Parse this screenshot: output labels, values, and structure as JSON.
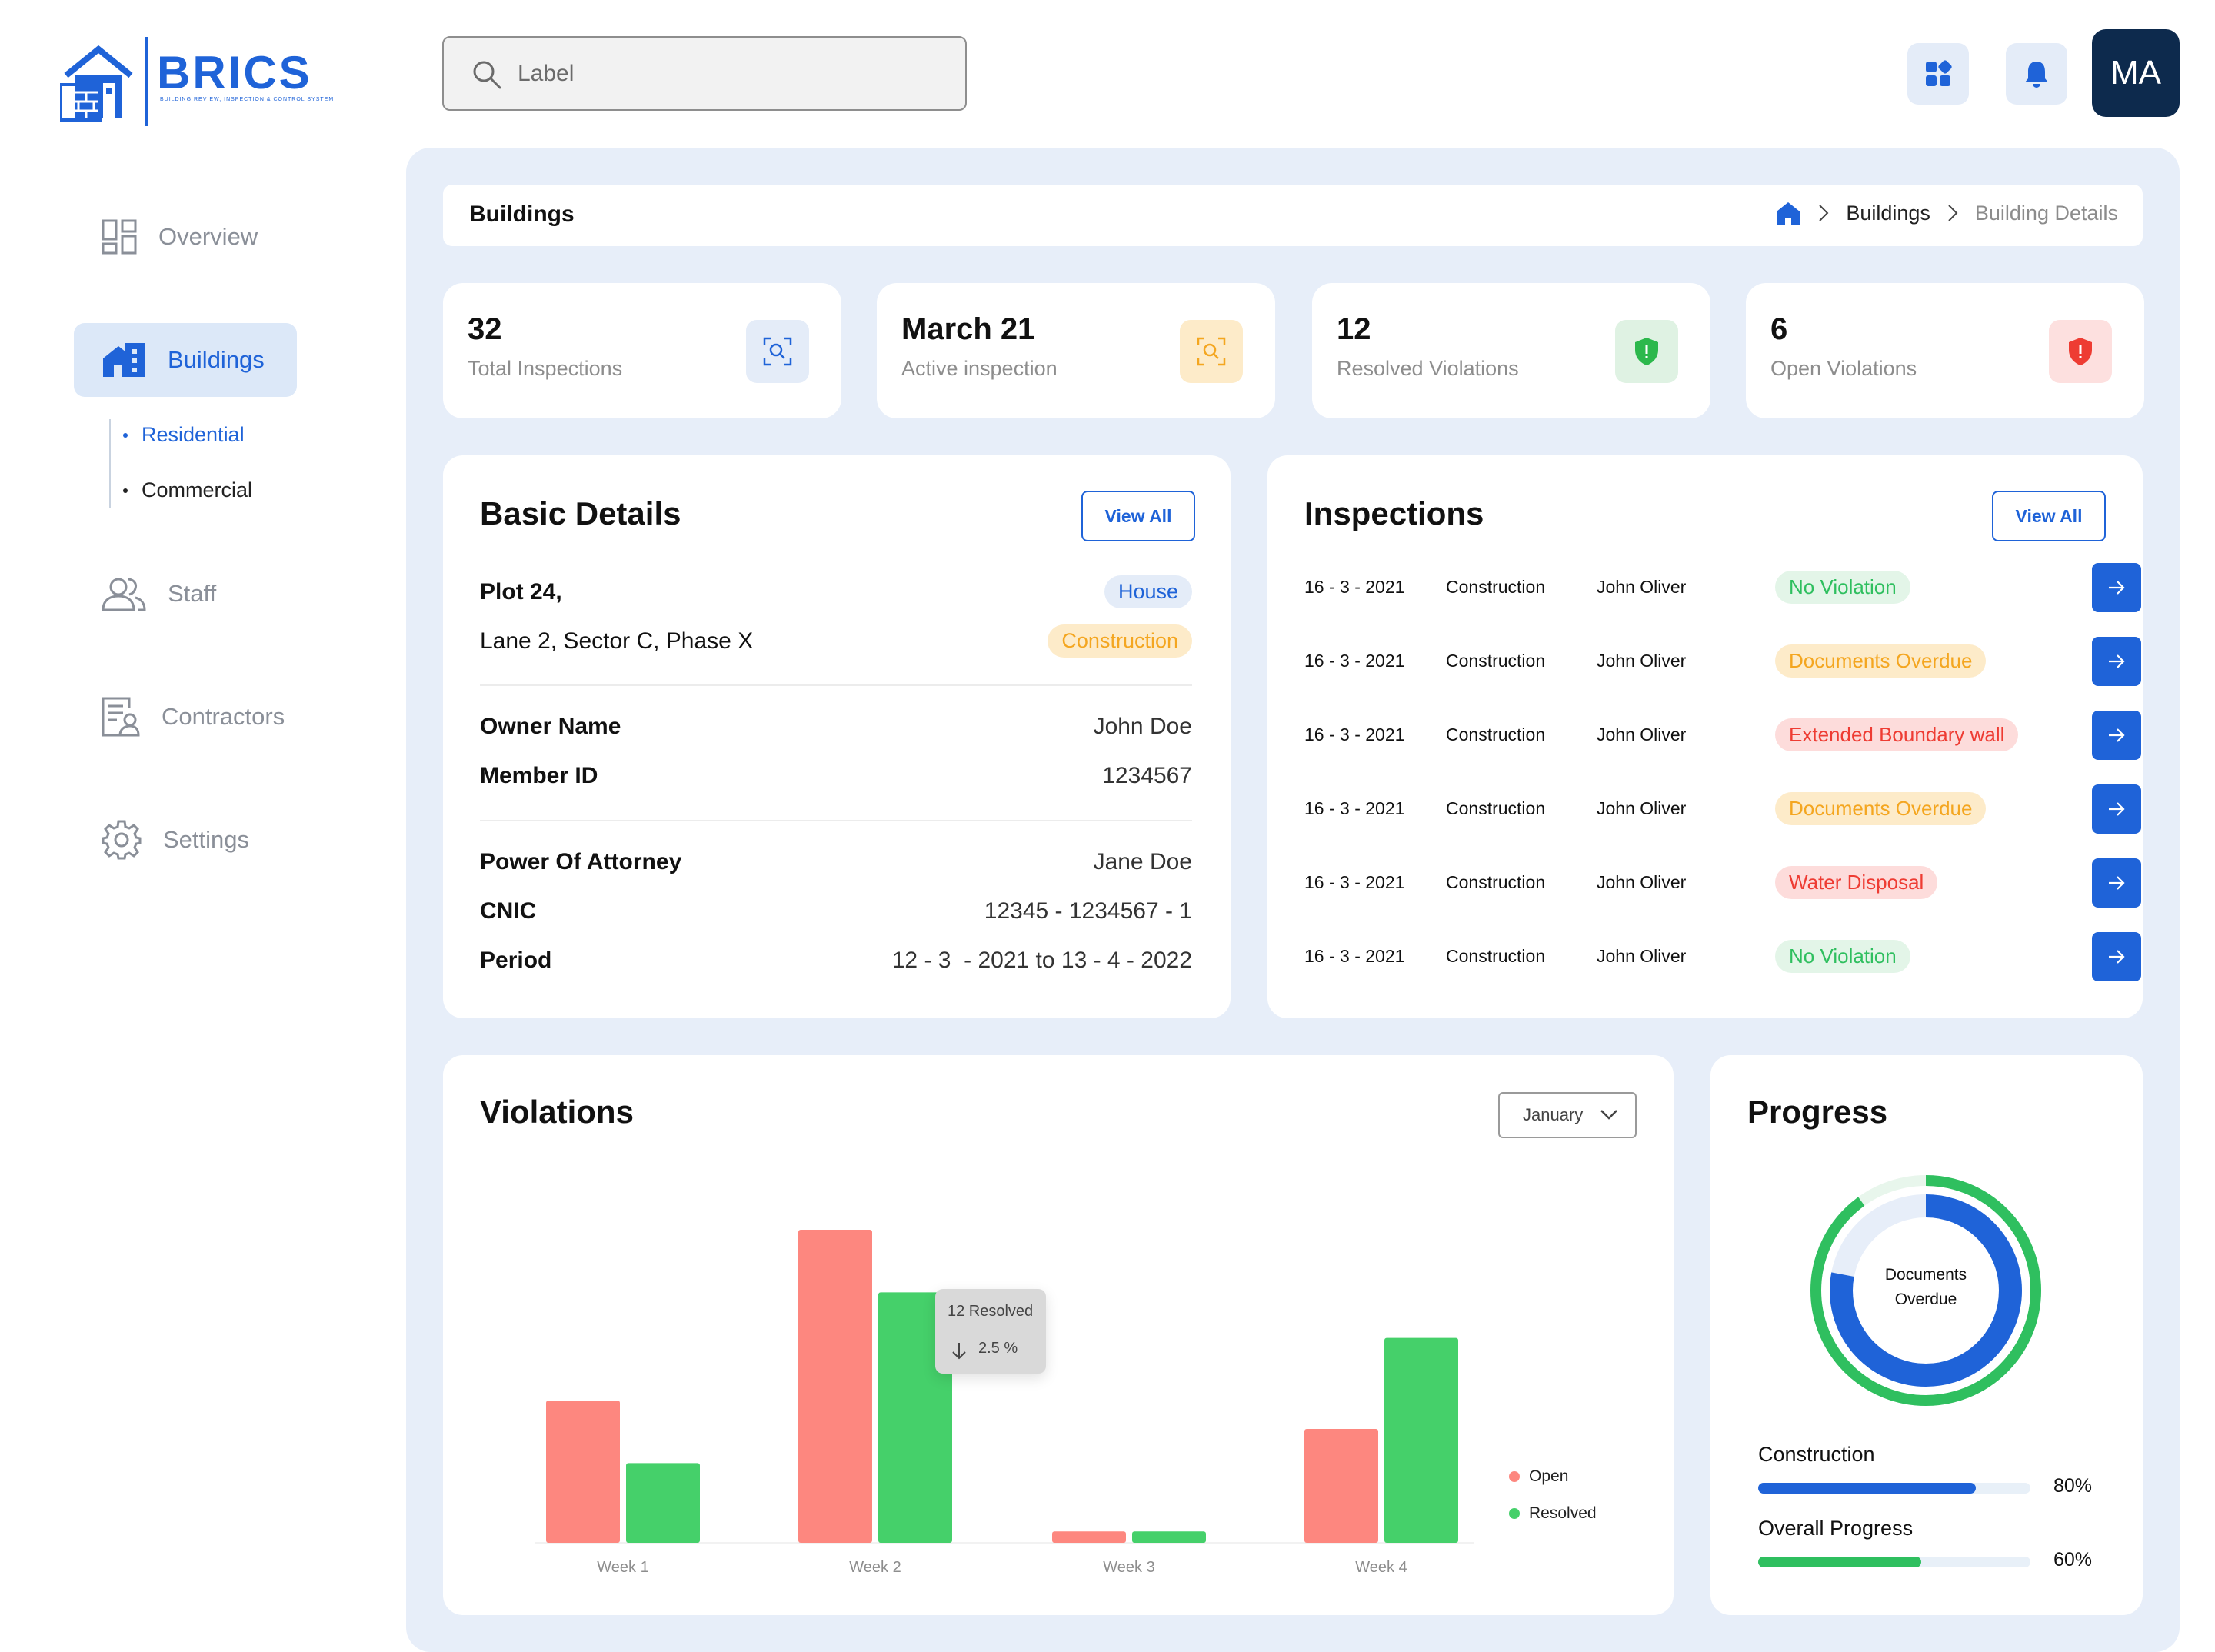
{
  "logo": {
    "name": "BRICS",
    "tagline": "BUILDING REVIEW, INSPECTION & CONTROL SYSTEM"
  },
  "search": {
    "placeholder": "Label"
  },
  "user": {
    "initials": "MA"
  },
  "colors": {
    "accent": "#1f63d8",
    "open": "#fd877f",
    "resolved": "#45d06a",
    "avatar": "#0d2a4d"
  },
  "sidebar": {
    "items": [
      {
        "label": "Overview",
        "icon": "grid-icon"
      },
      {
        "label": "Buildings",
        "icon": "buildings-icon",
        "active": true
      },
      {
        "label": "Staff",
        "icon": "users-icon"
      },
      {
        "label": "Contractors",
        "icon": "contract-icon"
      },
      {
        "label": "Settings",
        "icon": "gear-icon"
      }
    ],
    "sub_items": [
      {
        "label": "Residential",
        "active": true
      },
      {
        "label": "Commercial"
      }
    ]
  },
  "header": {
    "title": "Buildings",
    "breadcrumbs": [
      "Buildings",
      "Building Details"
    ]
  },
  "stats": [
    {
      "value": "32",
      "label": "Total Inspections",
      "icon": "scan-search-icon",
      "tint": "#e4ecf8",
      "color": "#1f63d8"
    },
    {
      "value": "March 21",
      "label": "Active inspection",
      "icon": "scan-search-icon",
      "tint": "#fdebc9",
      "color": "#f4a620"
    },
    {
      "value": "12",
      "label": "Resolved Violations",
      "icon": "shield-check-icon",
      "tint": "#dff2e3",
      "color": "#2cb84c"
    },
    {
      "value": "6",
      "label": "Open Violations",
      "icon": "shield-alert-icon",
      "tint": "#fde0df",
      "color": "#ee3c33"
    }
  ],
  "basic_details": {
    "title": "Basic Details",
    "view_all": "View All",
    "address_line1": "Plot 24,",
    "address_line2": "Lane 2, Sector C, Phase X",
    "tags": [
      "House",
      "Construction"
    ],
    "owner_name_label": "Owner Name",
    "owner_name": "John Doe",
    "member_id_label": "Member ID",
    "member_id": "1234567",
    "poa_label": "Power Of Attorney",
    "poa": "Jane Doe",
    "cnic_label": "CNIC",
    "cnic": "12345 - 1234567 - 1",
    "period_label": "Period",
    "period": "12 - 3  - 2021 to 13 - 4 - 2022"
  },
  "inspections": {
    "title": "Inspections",
    "view_all": "View All",
    "rows": [
      {
        "date": "16 - 3 - 2021",
        "type": "Construction",
        "inspector": "John Oliver",
        "status": "No Violation",
        "status_kind": "green"
      },
      {
        "date": "16 - 3 - 2021",
        "type": "Construction",
        "inspector": "John Oliver",
        "status": "Documents Overdue",
        "status_kind": "orange"
      },
      {
        "date": "16 - 3 - 2021",
        "type": "Construction",
        "inspector": "John Oliver",
        "status": "Extended Boundary wall",
        "status_kind": "red"
      },
      {
        "date": "16 - 3 - 2021",
        "type": "Construction",
        "inspector": "John Oliver",
        "status": "Documents Overdue",
        "status_kind": "orange"
      },
      {
        "date": "16 - 3 - 2021",
        "type": "Construction",
        "inspector": "John Oliver",
        "status": "Water Disposal",
        "status_kind": "red"
      },
      {
        "date": "16 - 3 - 2021",
        "type": "Construction",
        "inspector": "John Oliver",
        "status": "No Violation",
        "status_kind": "green"
      }
    ]
  },
  "violations": {
    "title": "Violations",
    "month": "January",
    "tooltip": {
      "title": "12 Resolved",
      "change": "2.5 %"
    }
  },
  "chart_data": {
    "type": "bar",
    "categories": [
      "Week 1",
      "Week 2",
      "Week 3",
      "Week 4"
    ],
    "series": [
      {
        "name": "Open",
        "color": "#fd877f",
        "values": [
          5,
          11,
          0.4,
          4
        ]
      },
      {
        "name": "Resolved",
        "color": "#45d06a",
        "values": [
          2.8,
          8.8,
          0.4,
          7.2
        ]
      }
    ],
    "ylim": [
      0,
      12
    ],
    "grid": false,
    "legend": "bottom-right"
  },
  "progress": {
    "title": "Progress",
    "donut_label": "Documents Overdue",
    "donut_outer_fraction": 0.78,
    "donut_inner_fraction": 0.9,
    "items": [
      {
        "label": "Construction",
        "percent": "80%",
        "value": 0.8,
        "color": "#1f63d8"
      },
      {
        "label": "Overall Progress",
        "percent": "60%",
        "value": 0.6,
        "color": "#2fbf5f"
      }
    ]
  }
}
